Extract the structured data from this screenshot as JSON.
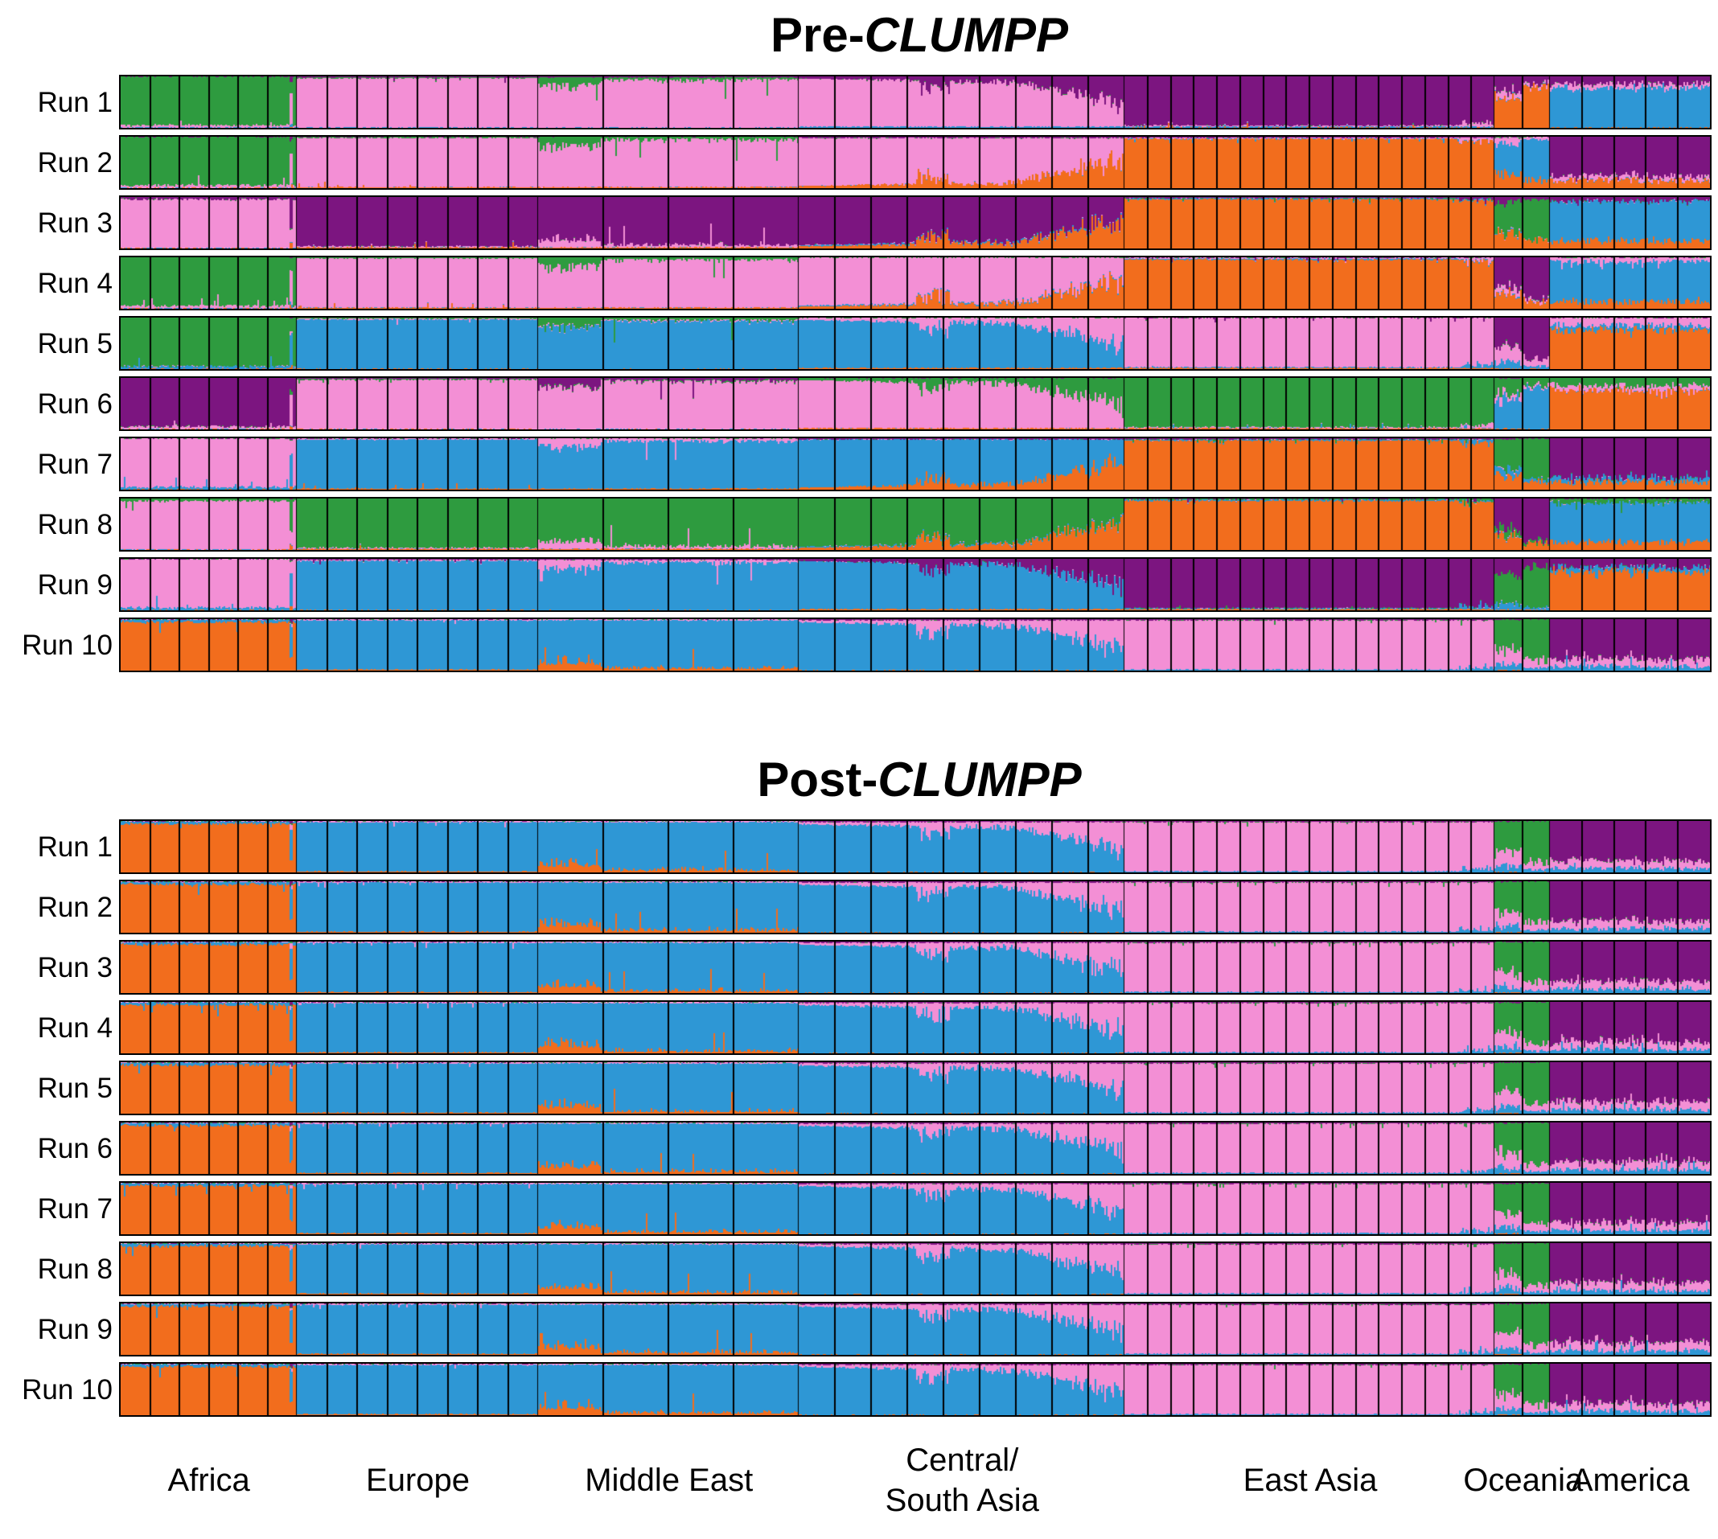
{
  "chart_data": {
    "type": "stacked-bar-admixture",
    "k_clusters": 5,
    "palette": {
      "orange": "#f26d1d",
      "blue": "#2e97d5",
      "pink": "#f38fd5",
      "green": "#2e9b3f",
      "purple": "#7c1580"
    },
    "stack_order": [
      "orange",
      "blue",
      "pink",
      "green",
      "purple"
    ],
    "regions": [
      {
        "label": [
          "Africa"
        ],
        "group": "africa",
        "subgroup": "africa",
        "fraction": 0.111,
        "populations": 6
      },
      {
        "label": [
          "Europe"
        ],
        "group": "west_eurasia",
        "subgroup": "europe",
        "fraction": 0.152,
        "populations": 8
      },
      {
        "label": [
          "Middle East"
        ],
        "group": "west_eurasia",
        "subgroup": "middle_east",
        "fraction": 0.164,
        "populations": 4
      },
      {
        "label": [
          "Central/",
          "South Asia"
        ],
        "group": "west_eurasia",
        "subgroup": "csasia",
        "fraction": 0.205,
        "populations": 9
      },
      {
        "label": [
          "East Asia"
        ],
        "group": "east_asia",
        "subgroup": "east_asia",
        "fraction": 0.233,
        "populations": 16
      },
      {
        "label": [
          "Oceania"
        ],
        "group": "oceania",
        "subgroup": "oceania",
        "fraction": 0.035,
        "populations": 2
      },
      {
        "label": [
          "America"
        ],
        "group": "america",
        "subgroup": "america",
        "fraction": 0.1,
        "populations": 5
      }
    ],
    "panels": [
      {
        "title_prefix": "Pre-",
        "title_italic": "CLUMPP",
        "runs": [
          {
            "label": "Run 1",
            "cluster_colors": {
              "africa": "green",
              "west_eurasia": "pink",
              "east_asia": "purple",
              "oceania": "orange",
              "america": "blue"
            }
          },
          {
            "label": "Run 2",
            "cluster_colors": {
              "africa": "green",
              "west_eurasia": "pink",
              "east_asia": "orange",
              "oceania": "blue",
              "america": "purple"
            }
          },
          {
            "label": "Run 3",
            "cluster_colors": {
              "africa": "pink",
              "west_eurasia": "purple",
              "east_asia": "orange",
              "oceania": "green",
              "america": "blue"
            }
          },
          {
            "label": "Run 4",
            "cluster_colors": {
              "africa": "green",
              "west_eurasia": "pink",
              "east_asia": "orange",
              "oceania": "purple",
              "america": "blue"
            }
          },
          {
            "label": "Run 5",
            "cluster_colors": {
              "africa": "green",
              "west_eurasia": "blue",
              "east_asia": "pink",
              "oceania": "purple",
              "america": "orange"
            }
          },
          {
            "label": "Run 6",
            "cluster_colors": {
              "africa": "purple",
              "west_eurasia": "pink",
              "east_asia": "green",
              "oceania": "blue",
              "america": "orange"
            }
          },
          {
            "label": "Run 7",
            "cluster_colors": {
              "africa": "pink",
              "west_eurasia": "blue",
              "east_asia": "orange",
              "oceania": "green",
              "america": "purple"
            }
          },
          {
            "label": "Run 8",
            "cluster_colors": {
              "africa": "pink",
              "west_eurasia": "green",
              "east_asia": "orange",
              "oceania": "purple",
              "america": "blue"
            }
          },
          {
            "label": "Run 9",
            "cluster_colors": {
              "africa": "pink",
              "west_eurasia": "blue",
              "east_asia": "purple",
              "oceania": "green",
              "america": "orange"
            }
          },
          {
            "label": "Run 10",
            "cluster_colors": {
              "africa": "orange",
              "west_eurasia": "blue",
              "east_asia": "pink",
              "oceania": "green",
              "america": "purple"
            }
          }
        ]
      },
      {
        "title_prefix": "Post-",
        "title_italic": "CLUMPP",
        "runs": [
          {
            "label": "Run 1",
            "cluster_colors": {
              "africa": "orange",
              "west_eurasia": "blue",
              "east_asia": "pink",
              "oceania": "green",
              "america": "purple"
            }
          },
          {
            "label": "Run 2",
            "cluster_colors": {
              "africa": "orange",
              "west_eurasia": "blue",
              "east_asia": "pink",
              "oceania": "green",
              "america": "purple"
            }
          },
          {
            "label": "Run 3",
            "cluster_colors": {
              "africa": "orange",
              "west_eurasia": "blue",
              "east_asia": "pink",
              "oceania": "green",
              "america": "purple"
            }
          },
          {
            "label": "Run 4",
            "cluster_colors": {
              "africa": "orange",
              "west_eurasia": "blue",
              "east_asia": "pink",
              "oceania": "green",
              "america": "purple"
            }
          },
          {
            "label": "Run 5",
            "cluster_colors": {
              "africa": "orange",
              "west_eurasia": "blue",
              "east_asia": "pink",
              "oceania": "green",
              "america": "purple"
            }
          },
          {
            "label": "Run 6",
            "cluster_colors": {
              "africa": "orange",
              "west_eurasia": "blue",
              "east_asia": "pink",
              "oceania": "green",
              "america": "purple"
            }
          },
          {
            "label": "Run 7",
            "cluster_colors": {
              "africa": "orange",
              "west_eurasia": "blue",
              "east_asia": "pink",
              "oceania": "green",
              "america": "purple"
            }
          },
          {
            "label": "Run 8",
            "cluster_colors": {
              "africa": "orange",
              "west_eurasia": "blue",
              "east_asia": "pink",
              "oceania": "green",
              "america": "purple"
            }
          },
          {
            "label": "Run 9",
            "cluster_colors": {
              "africa": "orange",
              "west_eurasia": "blue",
              "east_asia": "pink",
              "oceania": "green",
              "america": "purple"
            }
          },
          {
            "label": "Run 10",
            "cluster_colors": {
              "africa": "orange",
              "west_eurasia": "blue",
              "east_asia": "pink",
              "oceania": "green",
              "america": "purple"
            }
          }
        ]
      }
    ]
  }
}
